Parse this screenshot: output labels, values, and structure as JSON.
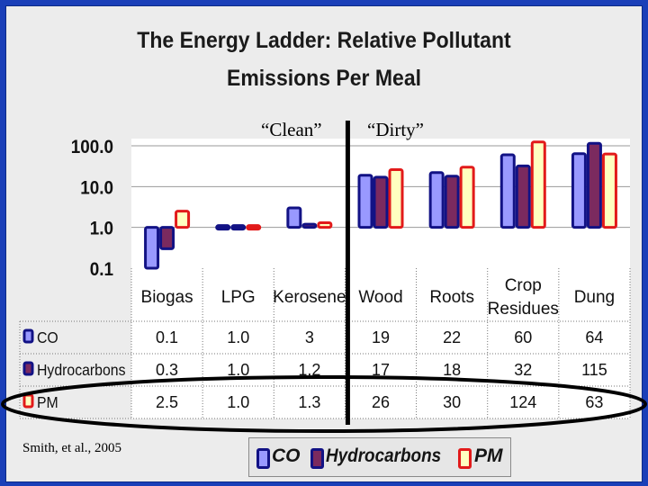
{
  "title": {
    "line1": "The Energy Ladder: Relative Pollutant",
    "line2": "Emissions Per Meal"
  },
  "annotations": {
    "clean": "“Clean”",
    "dirty": "“Dirty”"
  },
  "citation": "Smith, et al., 2005",
  "legend": [
    {
      "label": "CO",
      "fill": "#9999ff",
      "border": "#121285"
    },
    {
      "label": "Hydrocarbons",
      "fill": "#7b2a5f",
      "border": "#121285"
    },
    {
      "label": "PM",
      "fill": "#ffffc0",
      "border": "#e21a1a"
    }
  ],
  "chart_data": {
    "type": "bar",
    "title": "The Energy Ladder: Relative Pollutant Emissions Per Meal",
    "yscale": "log",
    "ylim": [
      0.1,
      100
    ],
    "yticks": [
      "100.0",
      "10.0",
      "1.0",
      "0.1"
    ],
    "categories": [
      "Biogas",
      "LPG",
      "Kerosene",
      "Wood",
      "Roots",
      "Crop Residues",
      "Dung"
    ],
    "category_lines": [
      [
        "Biogas"
      ],
      [
        "LPG"
      ],
      [
        "Kerosene"
      ],
      [
        "Wood"
      ],
      [
        "Roots"
      ],
      [
        "Crop",
        "Residues"
      ],
      [
        "Dung"
      ]
    ],
    "series": [
      {
        "name": "CO",
        "values": [
          0.1,
          1.0,
          3,
          19,
          22,
          60,
          64
        ],
        "labels": [
          "0.1",
          "1.0",
          "3",
          "19",
          "22",
          "60",
          "64"
        ]
      },
      {
        "name": "Hydrocarbons",
        "values": [
          0.3,
          1.0,
          1.2,
          17,
          18,
          32,
          115
        ],
        "labels": [
          "0.3",
          "1.0",
          "1.2",
          "17",
          "18",
          "32",
          "115"
        ]
      },
      {
        "name": "PM",
        "values": [
          2.5,
          1.0,
          1.3,
          26,
          30,
          124,
          63
        ],
        "labels": [
          "2.5",
          "1.0",
          "1.3",
          "26",
          "30",
          "124",
          "63"
        ]
      }
    ],
    "divider_after": "Kerosene",
    "highlight_row": "PM"
  }
}
